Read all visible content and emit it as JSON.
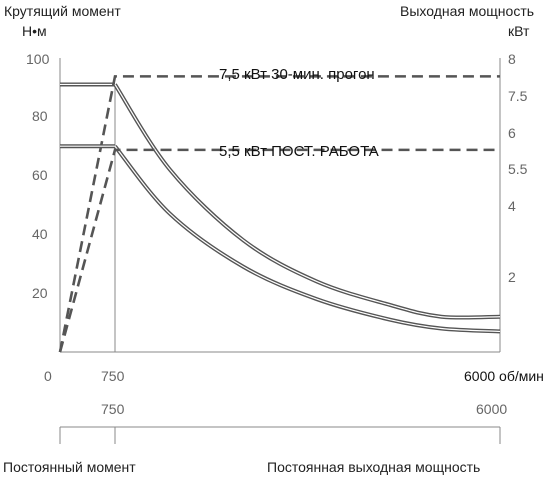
{
  "chart_data": {
    "type": "line",
    "left_axis": {
      "title": "Крутящий момент",
      "unit": "Н•м",
      "range": [
        0,
        100
      ],
      "ticks": [
        "100",
        "80",
        "60",
        "40",
        "20",
        "0"
      ]
    },
    "right_axis": {
      "title": "Выходная мощность",
      "unit": "кВт",
      "range": [
        0,
        8
      ],
      "ticks": [
        "8",
        "7.5",
        "6",
        "5.5",
        "4",
        "2"
      ]
    },
    "x_axis": {
      "range": [
        0,
        6000
      ],
      "tick_750": "750",
      "end_label": "6000 об/мин",
      "sub_ticks": [
        "750",
        "6000"
      ]
    },
    "zones": {
      "left": "Постоянный момент",
      "right": "Постоянная выходная мощность"
    },
    "series": [
      {
        "name": "7,5 кВт 30-мин. прогон",
        "torque_Nm": [
          [
            0,
            91
          ],
          [
            750,
            91
          ],
          [
            1500,
            62
          ],
          [
            2500,
            38
          ],
          [
            3500,
            24
          ],
          [
            4500,
            16
          ],
          [
            5200,
            12
          ],
          [
            6000,
            12
          ]
        ],
        "power_kW": [
          [
            0,
            0
          ],
          [
            750,
            7.5
          ],
          [
            6000,
            7.5
          ]
        ]
      },
      {
        "name": "5,5 кВт ПОСТ. РАБОТА",
        "torque_Nm": [
          [
            0,
            70
          ],
          [
            750,
            70
          ],
          [
            1500,
            47
          ],
          [
            2500,
            29
          ],
          [
            3500,
            18
          ],
          [
            4500,
            11
          ],
          [
            5200,
            8
          ],
          [
            6000,
            7
          ]
        ],
        "power_kW": [
          [
            0,
            0
          ],
          [
            750,
            5.5
          ],
          [
            6000,
            5.5
          ]
        ]
      }
    ],
    "annotations": [
      "7,5 кВт   30-мин. прогон",
      "5,5 кВт   ПОСТ. РАБОТА"
    ],
    "grid": false,
    "colors": {
      "line": "#555555",
      "axis": "#888888",
      "text": "#222222"
    }
  }
}
